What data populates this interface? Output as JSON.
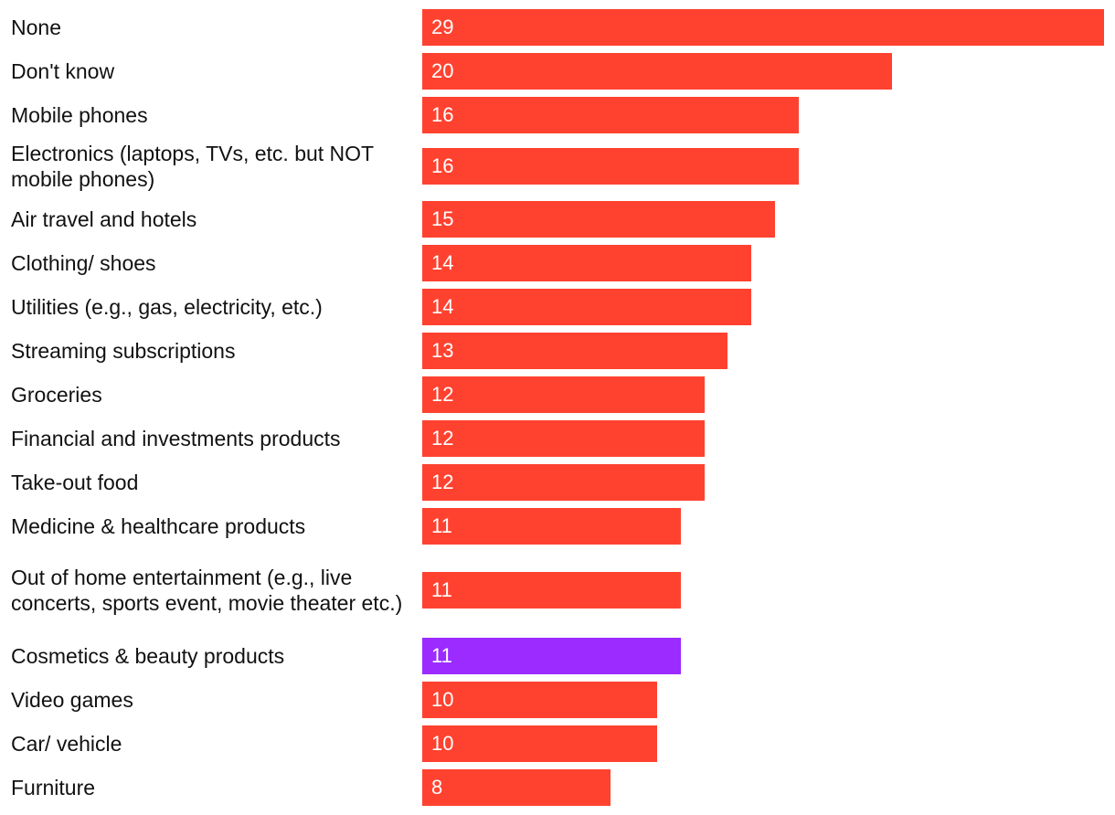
{
  "chart_data": {
    "type": "bar",
    "orientation": "horizontal",
    "categories": [
      "None",
      "Don't know",
      "Mobile phones",
      "Electronics (laptops, TVs, etc. but NOT mobile phones)",
      "Air travel and hotels",
      "Clothing/ shoes",
      "Utilities (e.g., gas, electricity, etc.)",
      "Streaming subscriptions",
      "Groceries",
      "Financial and investments products",
      "Take-out food",
      "Medicine & healthcare products",
      "Out of home entertainment (e.g., live concerts, sports event, movie theater etc.)",
      "Cosmetics & beauty products",
      "Video games",
      "Car/ vehicle",
      "Furniture"
    ],
    "values": [
      29,
      20,
      16,
      16,
      15,
      14,
      14,
      13,
      12,
      12,
      12,
      11,
      11,
      11,
      10,
      10,
      8
    ],
    "highlight_index": 13,
    "xlim": [
      0,
      29
    ],
    "colors": {
      "bar": "#ff4230",
      "highlight": "#9b2bff",
      "value_text": "#ffffff"
    }
  }
}
